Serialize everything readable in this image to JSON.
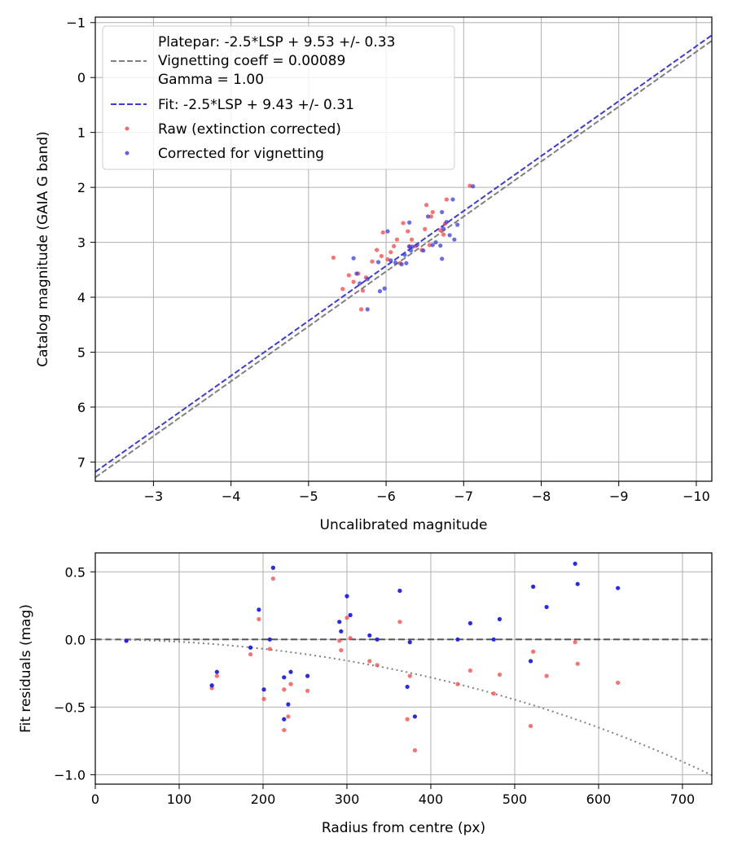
{
  "chart_data": [
    {
      "type": "scatter",
      "xlabel": "Uncalibrated magnitude",
      "ylabel": "Catalog magnitude (GAIA G band)",
      "xlim": [
        -2.25,
        -10.2
      ],
      "ylim": [
        7.35,
        -1.1
      ],
      "x_ticks": [
        -3,
        -4,
        -5,
        -6,
        -7,
        -8,
        -9,
        -10
      ],
      "x_tick_labels": [
        "−3",
        "−4",
        "−5",
        "−6",
        "−7",
        "−8",
        "−9",
        "−10"
      ],
      "y_ticks": [
        -1,
        0,
        1,
        2,
        3,
        4,
        5,
        6,
        7
      ],
      "y_tick_labels": [
        "−1",
        "0",
        "1",
        "2",
        "3",
        "4",
        "5",
        "6",
        "7"
      ],
      "grid": true,
      "legend_position": "top-left",
      "lines": [
        {
          "name": "Platepar: -2.5*LSP + 9.53 +/- 0.33\nVignetting coeff = 0.00089\nGamma = 1.00",
          "slope": 1.0,
          "intercept": 9.53,
          "color": "#808080",
          "style": "dashed"
        },
        {
          "name": "Fit: -2.5*LSP + 9.43 +/- 0.31",
          "slope": 1.0,
          "intercept": 9.43,
          "color": "#3b3bdb",
          "style": "dashed"
        }
      ],
      "series": [
        {
          "name": "Raw (extinction corrected)",
          "color": "#ff4040",
          "points": [
            [
              -5.32,
              3.28
            ],
            [
              -5.44,
              3.85
            ],
            [
              -5.52,
              3.6
            ],
            [
              -5.58,
              3.72
            ],
            [
              -5.64,
              3.57
            ],
            [
              -5.7,
              3.88
            ],
            [
              -5.68,
              4.22
            ],
            [
              -5.74,
              3.64
            ],
            [
              -5.82,
              3.35
            ],
            [
              -5.88,
              3.14
            ],
            [
              -5.94,
              3.25
            ],
            [
              -5.96,
              2.82
            ],
            [
              -6.02,
              3.31
            ],
            [
              -6.06,
              3.18
            ],
            [
              -6.1,
              3.07
            ],
            [
              -6.14,
              2.95
            ],
            [
              -6.18,
              3.38
            ],
            [
              -6.22,
              2.65
            ],
            [
              -6.28,
              2.8
            ],
            [
              -6.3,
              3.07
            ],
            [
              -6.33,
              2.95
            ],
            [
              -6.38,
              3.07
            ],
            [
              -6.46,
              3.14
            ],
            [
              -6.5,
              2.76
            ],
            [
              -6.52,
              2.32
            ],
            [
              -6.56,
              3.05
            ],
            [
              -6.58,
              2.53
            ],
            [
              -6.6,
              2.45
            ],
            [
              -6.7,
              2.78
            ],
            [
              -6.74,
              2.86
            ],
            [
              -6.76,
              2.66
            ],
            [
              -6.78,
              2.22
            ],
            [
              -7.08,
              1.97
            ]
          ]
        },
        {
          "name": "Corrected for vignetting",
          "color": "#3b3bdb",
          "points": [
            [
              -5.58,
              3.29
            ],
            [
              -5.62,
              3.57
            ],
            [
              -5.66,
              3.75
            ],
            [
              -5.76,
              4.22
            ],
            [
              -5.76,
              3.67
            ],
            [
              -5.9,
              3.36
            ],
            [
              -5.92,
              3.89
            ],
            [
              -5.98,
              3.84
            ],
            [
              -6.02,
              2.8
            ],
            [
              -6.06,
              3.33
            ],
            [
              -6.12,
              3.37
            ],
            [
              -6.2,
              3.4
            ],
            [
              -6.24,
              3.23
            ],
            [
              -6.26,
              3.38
            ],
            [
              -6.3,
              3.08
            ],
            [
              -6.3,
              2.64
            ],
            [
              -6.32,
              3.15
            ],
            [
              -6.34,
              3.08
            ],
            [
              -6.4,
              3.05
            ],
            [
              -6.48,
              3.15
            ],
            [
              -6.54,
              2.53
            ],
            [
              -6.6,
              3.05
            ],
            [
              -6.64,
              3.0
            ],
            [
              -6.7,
              3.06
            ],
            [
              -6.72,
              3.3
            ],
            [
              -6.72,
              2.45
            ],
            [
              -6.74,
              2.75
            ],
            [
              -6.78,
              2.63
            ],
            [
              -6.82,
              2.87
            ],
            [
              -6.86,
              2.22
            ],
            [
              -6.88,
              2.95
            ],
            [
              -6.92,
              2.68
            ],
            [
              -7.12,
              1.98
            ]
          ]
        }
      ]
    },
    {
      "type": "scatter",
      "xlabel": "Radius from centre (px)",
      "ylabel": "Fit residuals (mag)",
      "xlim": [
        0,
        735
      ],
      "ylim": [
        -1.07,
        0.64
      ],
      "x_ticks": [
        0,
        100,
        200,
        300,
        400,
        500,
        600,
        700
      ],
      "x_tick_labels": [
        "0",
        "100",
        "200",
        "300",
        "400",
        "500",
        "600",
        "700"
      ],
      "y_ticks": [
        0.5,
        0.0,
        -0.5,
        -1.0
      ],
      "y_tick_labels": [
        "0.5",
        "0.0",
        "−0.5",
        "−1.0"
      ],
      "grid": true,
      "reference_line": {
        "y": 0.0,
        "color": "#555555",
        "style": "dashed"
      },
      "vignetting_curve": {
        "coeff": 0.00089,
        "color": "#808080",
        "style": "dotted"
      },
      "series": [
        {
          "name": "Raw",
          "color": "#ff4040",
          "points": [
            [
              37,
              -0.01
            ],
            [
              139,
              -0.36
            ],
            [
              145,
              -0.27
            ],
            [
              185,
              -0.11
            ],
            [
              195,
              0.15
            ],
            [
              201,
              -0.44
            ],
            [
              208,
              -0.07
            ],
            [
              212,
              0.45
            ],
            [
              225,
              -0.37
            ],
            [
              225,
              -0.67
            ],
            [
              230,
              -0.57
            ],
            [
              233,
              -0.33
            ],
            [
              253,
              -0.38
            ],
            [
              291,
              -0.01
            ],
            [
              293,
              -0.08
            ],
            [
              300,
              0.16
            ],
            [
              304,
              0.01
            ],
            [
              327,
              -0.16
            ],
            [
              336,
              -0.19
            ],
            [
              363,
              0.13
            ],
            [
              372,
              -0.59
            ],
            [
              375,
              -0.27
            ],
            [
              381,
              -0.82
            ],
            [
              432,
              -0.33
            ],
            [
              447,
              -0.23
            ],
            [
              475,
              -0.4
            ],
            [
              482,
              -0.26
            ],
            [
              519,
              -0.64
            ],
            [
              522,
              -0.09
            ],
            [
              538,
              -0.27
            ],
            [
              572,
              -0.02
            ],
            [
              575,
              -0.18
            ],
            [
              623,
              -0.32
            ]
          ]
        },
        {
          "name": "Corrected",
          "color": "#1c1cf0",
          "points": [
            [
              37,
              -0.01
            ],
            [
              139,
              -0.34
            ],
            [
              145,
              -0.24
            ],
            [
              185,
              -0.06
            ],
            [
              195,
              0.22
            ],
            [
              201,
              -0.37
            ],
            [
              208,
              0.0
            ],
            [
              212,
              0.53
            ],
            [
              225,
              -0.28
            ],
            [
              225,
              -0.59
            ],
            [
              230,
              -0.48
            ],
            [
              233,
              -0.24
            ],
            [
              253,
              -0.27
            ],
            [
              291,
              0.13
            ],
            [
              293,
              0.06
            ],
            [
              300,
              0.32
            ],
            [
              304,
              0.18
            ],
            [
              327,
              0.03
            ],
            [
              336,
              0.0
            ],
            [
              363,
              0.36
            ],
            [
              372,
              -0.35
            ],
            [
              375,
              -0.02
            ],
            [
              381,
              -0.57
            ],
            [
              432,
              0.0
            ],
            [
              447,
              0.12
            ],
            [
              475,
              0.0
            ],
            [
              482,
              0.15
            ],
            [
              519,
              -0.16
            ],
            [
              522,
              0.39
            ],
            [
              538,
              0.24
            ],
            [
              572,
              0.56
            ],
            [
              575,
              0.41
            ],
            [
              623,
              0.38
            ]
          ]
        }
      ]
    }
  ]
}
